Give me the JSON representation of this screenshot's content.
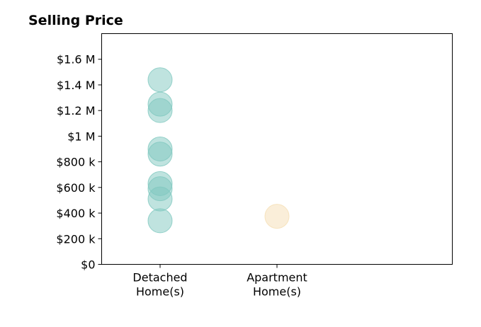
{
  "chart_data": {
    "type": "scatter",
    "title": "Selling Price",
    "xlabel": "",
    "ylabel": "",
    "categories": [
      [
        "Detached",
        "Home(s)"
      ],
      [
        "Apartment",
        "Home(s)"
      ]
    ],
    "yticks": [
      {
        "value": 0,
        "label": "$0"
      },
      {
        "value": 200000,
        "label": "$200 k"
      },
      {
        "value": 400000,
        "label": "$400 k"
      },
      {
        "value": 600000,
        "label": "$600 k"
      },
      {
        "value": 800000,
        "label": "$800 k"
      },
      {
        "value": 1000000,
        "label": "$1 M"
      },
      {
        "value": 1200000,
        "label": "$1.2 M"
      },
      {
        "value": 1400000,
        "label": "$1.4 M"
      },
      {
        "value": 1600000,
        "label": "$1.6 M"
      }
    ],
    "ylim": [
      0,
      1800000
    ],
    "xlim": [
      -0.5,
      2.5
    ],
    "grid": false,
    "series": [
      {
        "category_index": 0,
        "color": "#7fc8bf",
        "values": [
          1440000,
          1250000,
          1200000,
          900000,
          860000,
          630000,
          590000,
          510000,
          340000
        ]
      },
      {
        "category_index": 1,
        "color": "#f5deb3",
        "values": [
          375000
        ]
      }
    ]
  }
}
